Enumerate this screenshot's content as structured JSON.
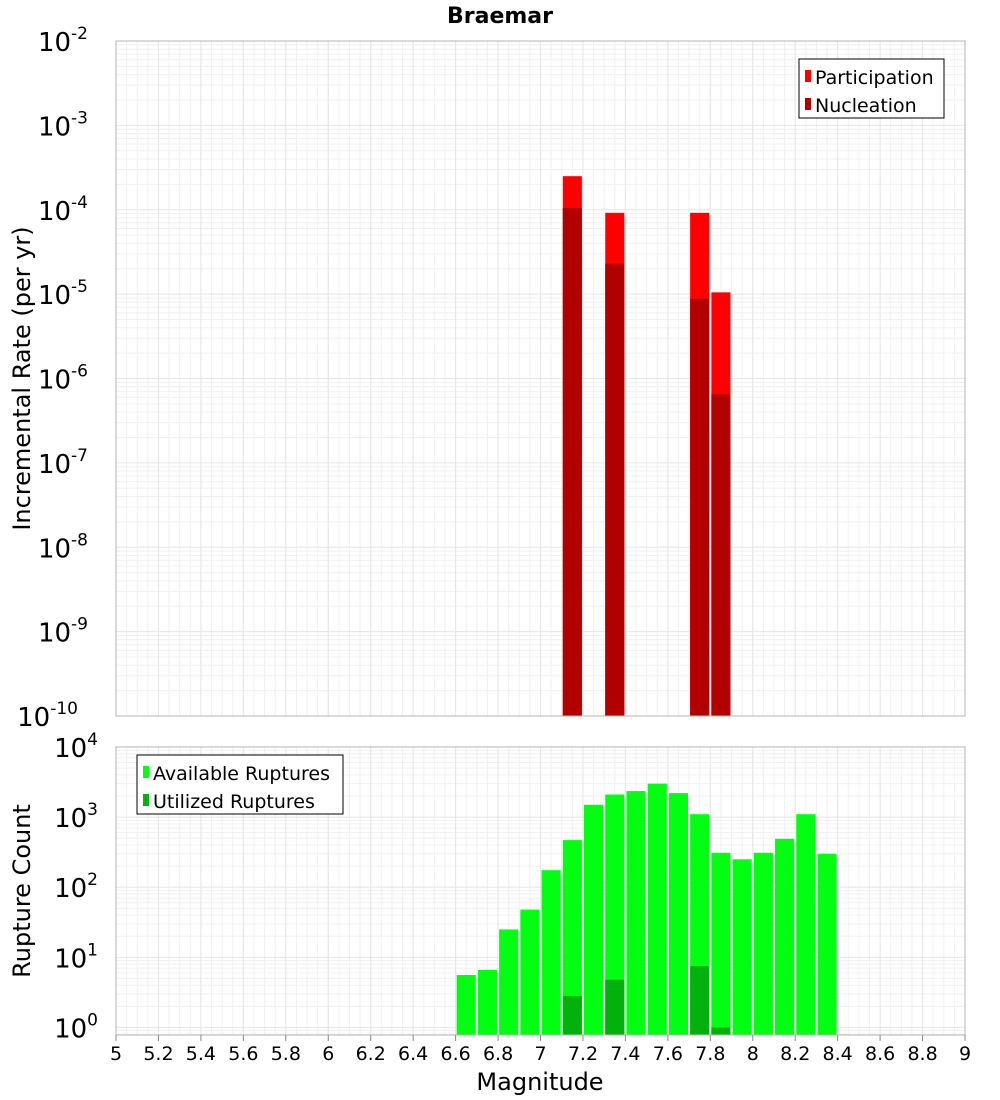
{
  "title": "Braemar",
  "colors": {
    "participation": "#ff0000",
    "nucleation": "#b20000",
    "available": "#00ff10",
    "utilized": "#00b20b",
    "grid": "#e6e6e6",
    "frame": "#b5b5b5"
  },
  "chart_data": [
    {
      "type": "bar",
      "name": "rate-panel",
      "ylabel": "Incremental Rate (per yr)",
      "yscale": "log",
      "ylim_exp": [
        -10,
        -2
      ],
      "xlim": [
        5,
        9
      ],
      "bar_width": 0.09,
      "legend": {
        "position": "top-right",
        "entries": [
          "Participation",
          "Nucleation"
        ]
      },
      "series": [
        {
          "name": "Participation",
          "x": [
            7.15,
            7.35,
            7.75,
            7.85
          ],
          "y": [
            0.00025,
            9.2e-05,
            9.2e-05,
            1.05e-05
          ]
        },
        {
          "name": "Nucleation",
          "x": [
            7.15,
            7.35,
            7.75,
            7.85
          ],
          "y": [
            0.000105,
            2.3e-05,
            8.8e-06,
            6.5e-07
          ]
        }
      ]
    },
    {
      "type": "bar",
      "name": "count-panel",
      "ylabel": "Rupture Count",
      "xlabel": "Magnitude",
      "yscale": "log",
      "ylim_exp": [
        0,
        4
      ],
      "ymin_value": 0.78,
      "xlim": [
        5,
        9
      ],
      "bar_width": 0.09,
      "legend": {
        "position": "top-left",
        "entries": [
          "Available Ruptures",
          "Utilized Ruptures"
        ]
      },
      "series": [
        {
          "name": "Available Ruptures",
          "x": [
            6.65,
            6.75,
            6.85,
            6.95,
            7.05,
            7.15,
            7.25,
            7.35,
            7.45,
            7.55,
            7.65,
            7.75,
            7.85,
            7.95,
            8.05,
            8.15,
            8.25,
            8.35
          ],
          "y": [
            5.6,
            6.6,
            25,
            48,
            175,
            470,
            1500,
            2100,
            2350,
            3000,
            2200,
            1100,
            310,
            250,
            310,
            490,
            1100,
            300
          ]
        },
        {
          "name": "Utilized Ruptures",
          "x": [
            7.15,
            7.35,
            7.75,
            7.85
          ],
          "y": [
            2.8,
            4.8,
            7.5,
            1.0
          ]
        }
      ],
      "xticks": [
        "5",
        "5.2",
        "5.4",
        "5.6",
        "5.8",
        "6",
        "6.2",
        "6.4",
        "6.6",
        "6.8",
        "7",
        "7.2",
        "7.4",
        "7.6",
        "7.8",
        "8",
        "8.2",
        "8.4",
        "8.6",
        "8.8",
        "9"
      ]
    }
  ]
}
